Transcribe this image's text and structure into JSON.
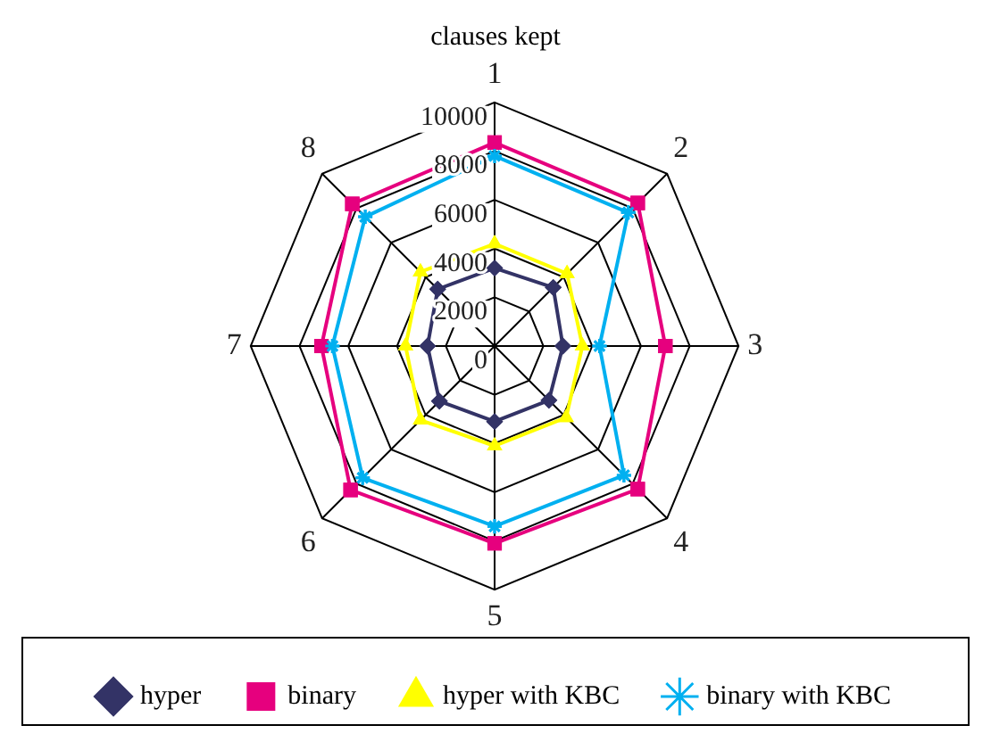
{
  "chart_data": {
    "type": "radar",
    "title": "clauses kept",
    "categories": [
      "1",
      "2",
      "3",
      "4",
      "5",
      "6",
      "7",
      "8"
    ],
    "ylim": [
      0,
      10000
    ],
    "yticks": [
      0,
      2000,
      4000,
      6000,
      8000,
      10000
    ],
    "grid": true,
    "legend": "bottom",
    "series": [
      {
        "name": "hyper",
        "color": "#333366",
        "marker": "diamond",
        "values": [
          3200,
          3400,
          2800,
          3150,
          3100,
          3200,
          2750,
          3300
        ]
      },
      {
        "name": "binary",
        "color": "#e6007e",
        "marker": "square",
        "values": [
          8350,
          8300,
          7000,
          8300,
          8100,
          8350,
          7100,
          8250
        ]
      },
      {
        "name": "hyper with KBC",
        "color": "#ffff00",
        "marker": "triangle",
        "values": [
          4200,
          4200,
          3600,
          4150,
          4100,
          4300,
          3650,
          4300
        ]
      },
      {
        "name": "binary with KBC",
        "color": "#00b0f0",
        "marker": "star",
        "values": [
          7800,
          7750,
          4300,
          7500,
          7400,
          7650,
          6650,
          7500
        ]
      }
    ]
  }
}
